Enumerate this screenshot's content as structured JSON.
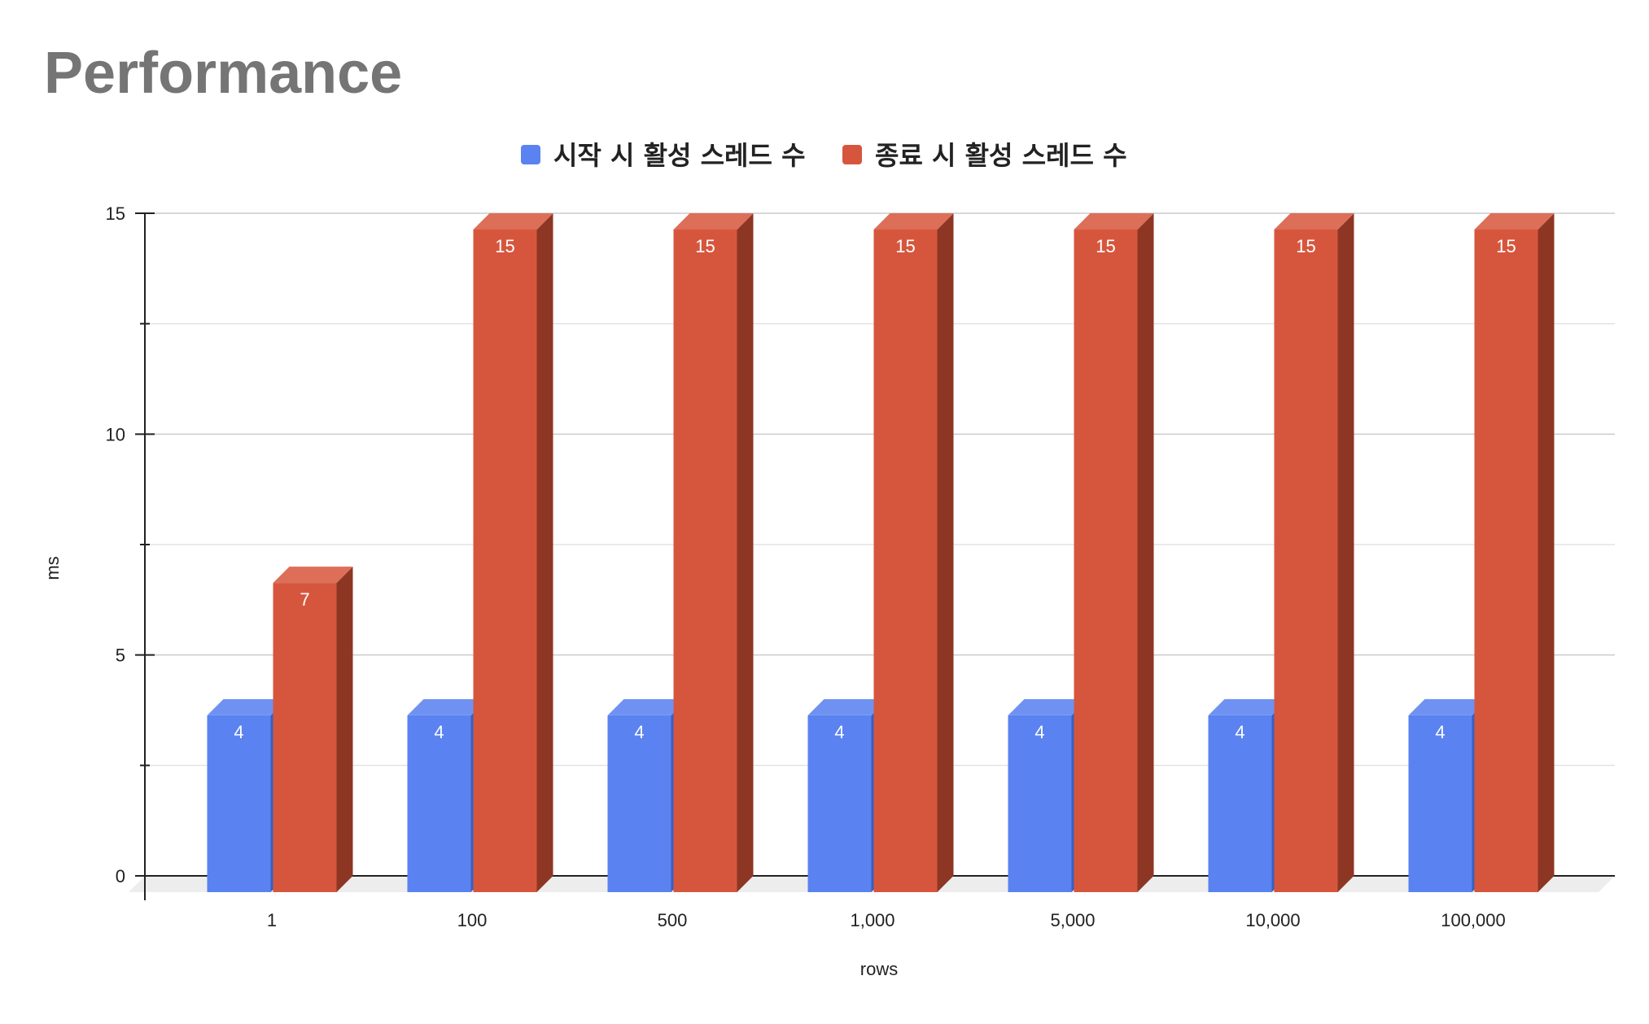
{
  "chart_data": {
    "type": "bar",
    "title": "Performance",
    "xlabel": "rows",
    "ylabel": "ms",
    "categories": [
      "1",
      "100",
      "500",
      "1,000",
      "5,000",
      "10,000",
      "100,000"
    ],
    "series": [
      {
        "name": "시작 시 활성 스레드 수",
        "values": [
          4,
          4,
          4,
          4,
          4,
          4,
          4
        ],
        "color": "#5a82f0",
        "top_color": "#6f92f2",
        "side_color": "#3a5fc0"
      },
      {
        "name": "종료 시 활성 스레드 수",
        "values": [
          7,
          15,
          15,
          15,
          15,
          15,
          15
        ],
        "color": "#d6563d",
        "top_color": "#dd6e58",
        "side_color": "#8e3624"
      }
    ],
    "ylim": [
      0,
      15
    ],
    "yticks": [
      0,
      5,
      10,
      15
    ],
    "grid": true,
    "legend_position": "top",
    "style": "3d-column"
  }
}
